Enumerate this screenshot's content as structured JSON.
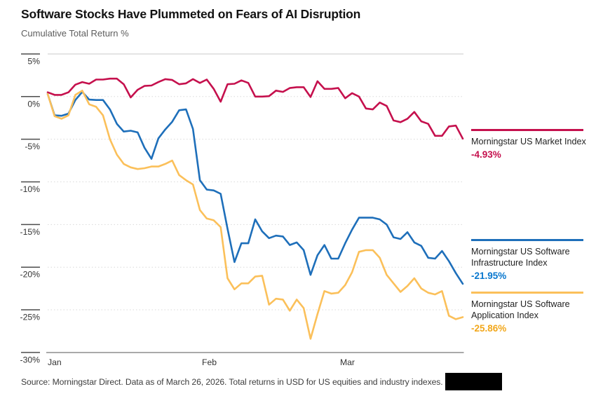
{
  "header": {
    "title": "Software Stocks Have Plummeted on Fears of AI Disruption",
    "subtitle": "Cumulative Total Return %"
  },
  "legend": {
    "market": {
      "label": "Morningstar US Market Index",
      "value": "-4.93%",
      "color": "#C5104D",
      "value_color": "#C5104D"
    },
    "infrastructure": {
      "label": "Morningstar US Software Infrastructure Index",
      "value": "-21.95%",
      "color": "#1E6FBA",
      "value_color": "#0877CE"
    },
    "application": {
      "label": "Morningstar US Software Application Index",
      "value": "-25.86%",
      "color": "#FBC05A",
      "value_color": "#F2A71B"
    }
  },
  "source": {
    "text": "Source: Morningstar Direct. Data as of March 26, 2026. Total returns in USD for US equities and industry indexes."
  },
  "chart_data": {
    "type": "line",
    "title": "Software Stocks Have Plummeted on Fears of AI Disruption",
    "ylabel": "Cumulative Total Return %",
    "ylim": [
      -30,
      5
    ],
    "grid": "horizontal-dotted",
    "legend_position": "right-annotations",
    "x_axis": {
      "labels": [
        "Jan",
        "Feb",
        "Mar"
      ],
      "range": "Jan 1 2026 - Mar 26 2026"
    },
    "y_ticks": [
      {
        "value": 5,
        "label": "5%"
      },
      {
        "value": 0,
        "label": "0%"
      },
      {
        "value": -5,
        "label": "-5%"
      },
      {
        "value": -10,
        "label": "-10%"
      },
      {
        "value": -15,
        "label": "-15%"
      },
      {
        "value": -20,
        "label": "-20%"
      },
      {
        "value": -25,
        "label": "-25%"
      },
      {
        "value": -30,
        "label": "-30%"
      }
    ],
    "series": [
      {
        "name": "Morningstar US Market Index",
        "color": "#C5104D",
        "end_value": -4.93,
        "values": [
          0.5,
          0.2,
          0.2,
          0.5,
          1.4,
          1.7,
          1.5,
          2.0,
          2.0,
          2.1,
          2.1,
          1.45,
          -0.1,
          0.8,
          1.25,
          1.3,
          1.7,
          2.05,
          1.95,
          1.45,
          1.55,
          2.05,
          1.6,
          2.0,
          0.9,
          -0.6,
          1.45,
          1.5,
          1.9,
          1.6,
          0.0,
          0.0,
          0.05,
          0.7,
          0.55,
          1.0,
          1.1,
          1.1,
          -0.05,
          1.8,
          0.9,
          0.9,
          1.0,
          -0.2,
          0.4,
          0.0,
          -1.4,
          -1.5,
          -0.7,
          -1.1,
          -2.8,
          -3.0,
          -2.6,
          -1.8,
          -2.9,
          -3.2,
          -4.6,
          -4.6,
          -3.5,
          -3.4,
          -4.93
        ]
      },
      {
        "name": "Morningstar US Software Infrastructure Index",
        "color": "#1E6FBA",
        "end_value": -21.95,
        "values": [
          0.3,
          -2.2,
          -2.25,
          -2.0,
          -0.4,
          0.55,
          -0.35,
          -0.4,
          -0.4,
          -1.5,
          -3.2,
          -4.1,
          -4.0,
          -4.2,
          -6.0,
          -7.3,
          -4.9,
          -3.85,
          -2.95,
          -1.6,
          -1.5,
          -3.8,
          -9.8,
          -10.9,
          -11.0,
          -11.4,
          -15.5,
          -19.4,
          -17.2,
          -17.2,
          -14.4,
          -15.8,
          -16.6,
          -16.3,
          -16.4,
          -17.4,
          -17.1,
          -18.0,
          -20.9,
          -18.6,
          -17.4,
          -19.0,
          -19.0,
          -17.2,
          -15.6,
          -14.2,
          -14.2,
          -14.2,
          -14.4,
          -15.0,
          -16.5,
          -16.7,
          -15.9,
          -17.1,
          -17.5,
          -18.9,
          -19.0,
          -18.1,
          -19.3,
          -20.7,
          -21.95
        ]
      },
      {
        "name": "Morningstar US Software Application Index",
        "color": "#FBC05A",
        "end_value": -25.86,
        "values": [
          0.3,
          -2.3,
          -2.6,
          -2.2,
          0.2,
          0.7,
          -0.9,
          -1.2,
          -2.2,
          -5.0,
          -6.8,
          -7.9,
          -8.3,
          -8.5,
          -8.4,
          -8.2,
          -8.2,
          -7.9,
          -7.5,
          -9.2,
          -9.8,
          -10.3,
          -13.3,
          -14.3,
          -14.5,
          -15.3,
          -21.3,
          -22.6,
          -21.9,
          -21.9,
          -21.1,
          -21.0,
          -24.4,
          -23.7,
          -23.8,
          -25.1,
          -23.8,
          -24.8,
          -28.4,
          -25.5,
          -22.8,
          -23.1,
          -23.0,
          -22.1,
          -20.6,
          -18.2,
          -18.0,
          -18.0,
          -18.9,
          -20.9,
          -21.9,
          -22.9,
          -22.2,
          -21.3,
          -22.5,
          -23.0,
          -23.2,
          -22.8,
          -25.7,
          -26.1,
          -25.86
        ]
      }
    ]
  }
}
